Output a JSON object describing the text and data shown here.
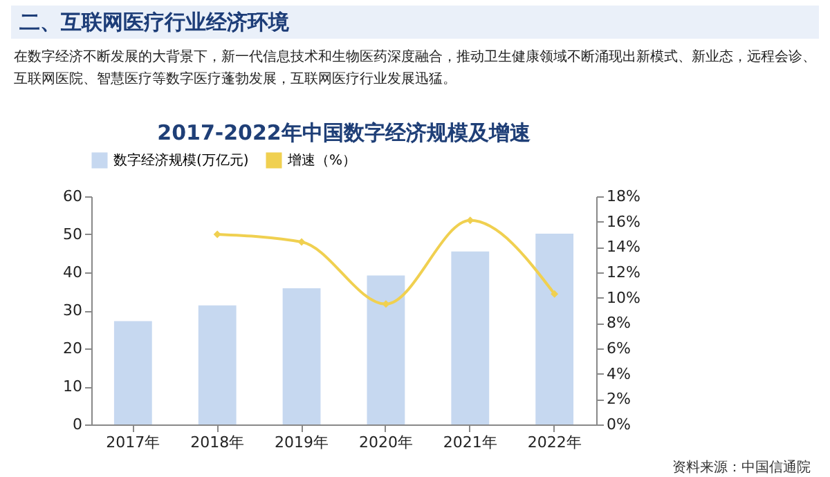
{
  "chart_data": {
    "type": "bar",
    "title": "2017-2022年中国数字经济规模及增速",
    "annotations": [
      "二、互联网医疗行业经济环境",
      "在数字经济不断发展的大背景下，新一代信息技术和生物医药深度融合，推动卫生健康领域不断涌现出新模式、新业态，远程会诊、互联网医院、智慧医疗等数字医疗蓬勃发展，互联网医疗行业发展迅猛。",
      "资料来源：中国信通院"
    ],
    "categories": [
      "2017年",
      "2018年",
      "2019年",
      "2020年",
      "2021年",
      "2022年"
    ],
    "series": [
      {
        "name": "数字经济规模(万亿元)",
        "color": "#c6d8f0",
        "values": [
          27.2,
          31.3,
          35.8,
          39.2,
          45.5,
          50.2
        ]
      },
      {
        "name": "增速（%）",
        "type": "line",
        "axis": "y2",
        "color": "#f0d050",
        "values": [
          null,
          15.0,
          14.4,
          9.5,
          16.1,
          10.3
        ]
      }
    ],
    "ylim": [
      0,
      60
    ],
    "yticks": [
      0,
      10,
      20,
      30,
      40,
      50,
      60
    ],
    "y2lim": [
      0,
      18
    ],
    "y2ticks": [
      {
        "value": 0,
        "label": "0%"
      },
      {
        "value": 2,
        "label": "2%"
      },
      {
        "value": 4,
        "label": "4%"
      },
      {
        "value": 6,
        "label": "6%"
      },
      {
        "value": 8,
        "label": "8%"
      },
      {
        "value": 10,
        "label": "10%"
      },
      {
        "value": 12,
        "label": "12%"
      },
      {
        "value": 14,
        "label": "14%"
      },
      {
        "value": 16,
        "label": "16%"
      },
      {
        "value": 18,
        "label": "18%"
      }
    ],
    "grid": false,
    "legend": "top",
    "marker": "diamond"
  }
}
